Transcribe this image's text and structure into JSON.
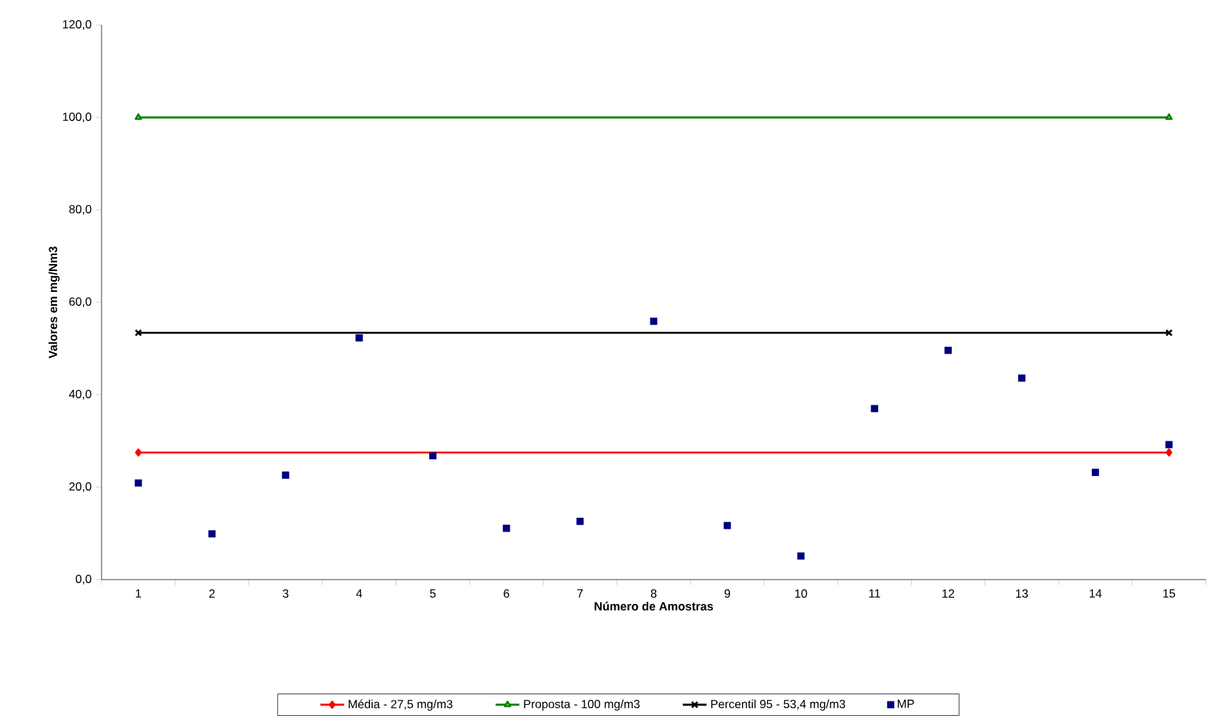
{
  "chart_data": {
    "type": "scatter",
    "xlabel": "Número de Amostras",
    "ylabel": "Valores em mg/Nm3",
    "categories": [
      "1",
      "2",
      "3",
      "4",
      "5",
      "6",
      "7",
      "8",
      "9",
      "10",
      "11",
      "12",
      "13",
      "14",
      "15"
    ],
    "ylim": [
      0,
      120
    ],
    "yticks": [
      {
        "value": 0,
        "label": "0,0"
      },
      {
        "value": 20,
        "label": "20,0"
      },
      {
        "value": 40,
        "label": "40,0"
      },
      {
        "value": 60,
        "label": "60,0"
      },
      {
        "value": 80,
        "label": "80,0"
      },
      {
        "value": 100,
        "label": "100,0"
      },
      {
        "value": 120,
        "label": "120,0"
      }
    ],
    "legend": "bottom",
    "grid": false,
    "series": [
      {
        "name": "Média - 27,5 mg/m3",
        "type": "line",
        "color": "#ff0000",
        "marker": "diamond",
        "values": [
          27.5,
          null,
          null,
          null,
          null,
          null,
          null,
          null,
          null,
          null,
          null,
          null,
          null,
          null,
          27.5
        ]
      },
      {
        "name": "Proposta - 100 mg/m3",
        "type": "line",
        "color": "#008000",
        "marker": "triangle",
        "values": [
          100,
          null,
          null,
          null,
          null,
          null,
          null,
          null,
          null,
          null,
          null,
          null,
          null,
          null,
          100
        ]
      },
      {
        "name": "Percentil 95 - 53,4 mg/m3",
        "type": "line",
        "color": "#000000",
        "marker": "cross",
        "values": [
          53.4,
          null,
          null,
          null,
          null,
          null,
          null,
          null,
          null,
          null,
          null,
          null,
          null,
          null,
          53.4
        ]
      },
      {
        "name": "MP",
        "color": "#000080",
        "marker": "square",
        "values": [
          20.9,
          9.9,
          22.6,
          52.3,
          26.8,
          11.1,
          12.6,
          55.9,
          11.7,
          5.1,
          37.0,
          49.6,
          43.6,
          23.2,
          29.2
        ]
      }
    ]
  }
}
